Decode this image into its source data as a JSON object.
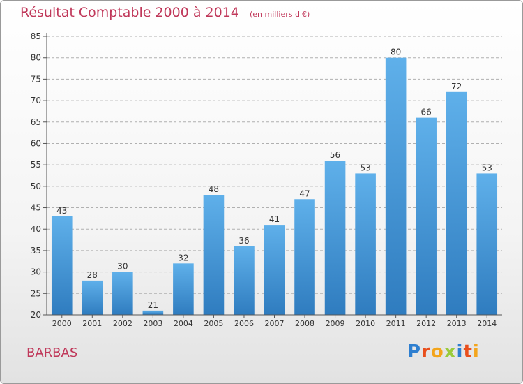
{
  "colors": {
    "bar_top": "#5fb0ea",
    "bar_bottom": "#2f7cbf",
    "title": "#c0385a",
    "grid": "#b0b0b0",
    "label": "#333333"
  },
  "chart_data": {
    "type": "bar",
    "title": "Résultat Comptable 2000 à 2014",
    "subtitle": "(en milliers d'€)",
    "categories": [
      "2000",
      "2001",
      "2002",
      "2003",
      "2004",
      "2005",
      "2006",
      "2007",
      "2008",
      "2009",
      "2010",
      "2011",
      "2012",
      "2013",
      "2014"
    ],
    "values": [
      43,
      28,
      30,
      21,
      32,
      48,
      36,
      41,
      47,
      56,
      53,
      80,
      66,
      72,
      53
    ],
    "ylim": [
      20,
      85
    ],
    "yticks": [
      20,
      25,
      30,
      35,
      40,
      45,
      50,
      55,
      60,
      65,
      70,
      75,
      80,
      85
    ],
    "grid": true,
    "data_labels": true
  },
  "footer": {
    "commune": "BARBAS",
    "logo_letters": [
      "P",
      "r",
      "o",
      "x",
      "i",
      "t",
      "i"
    ],
    "logo_colors": [
      "#2e7fd0",
      "#e94f1d",
      "#f3a51c",
      "#9acb3c",
      "#2e7fd0",
      "#e94f1d",
      "#f3a51c"
    ]
  }
}
